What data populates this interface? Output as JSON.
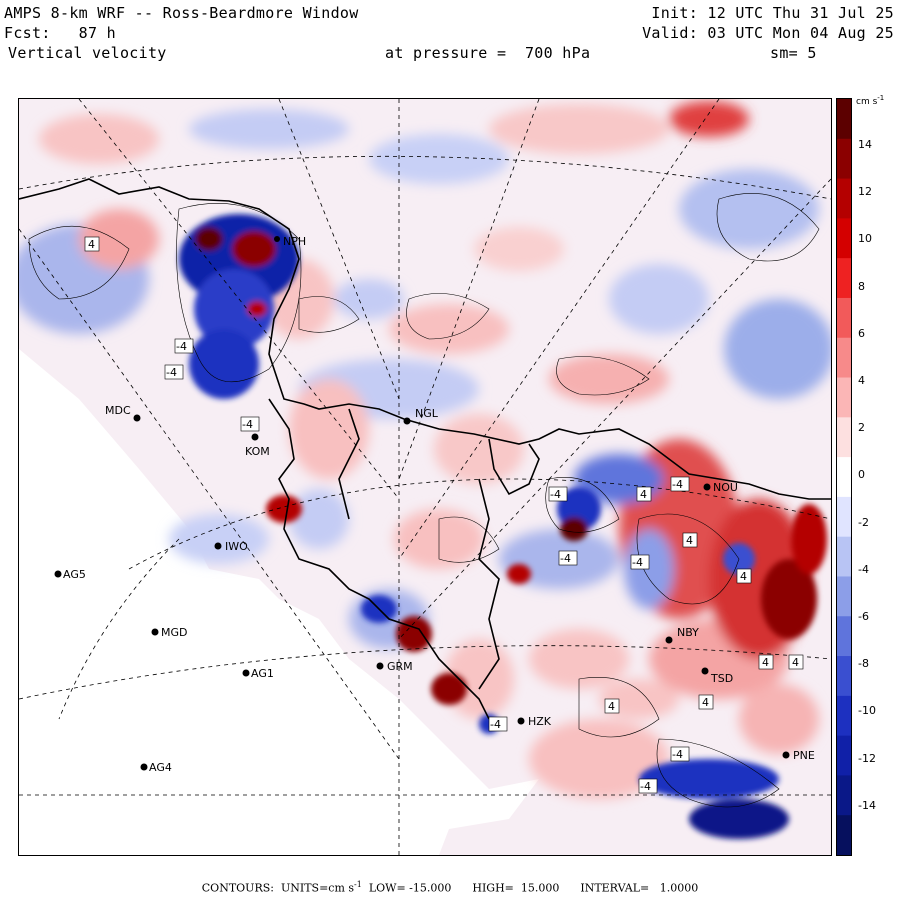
{
  "header": {
    "model": "AMPS 8-km WRF -- Ross-Beardmore Window",
    "forecast": "Fcst:   87 h",
    "field": "Vertical velocity",
    "init": "Init: 12 UTC Thu 31 Jul 25",
    "valid": "Valid: 03 UTC Mon 04 Aug 25",
    "pressure": "at pressure =  700 hPa",
    "smooth": "sm= 5"
  },
  "colorbar": {
    "units": "cm s",
    "units_exp": "-1",
    "ticks": [
      "14",
      "12",
      "10",
      "8",
      "6",
      "4",
      "2",
      "0",
      "-2",
      "-4",
      "-6",
      "-8",
      "-10",
      "-12",
      "-14"
    ],
    "colors": [
      "#5c0000",
      "#8b0000",
      "#b40000",
      "#d40000",
      "#ee2222",
      "#f25a5a",
      "#f78a8a",
      "#fbb6b6",
      "#fde0e0",
      "#ffffff",
      "#e0e4ff",
      "#b8c4f4",
      "#8c9ee8",
      "#5f74dc",
      "#3a4fd0",
      "#1d30c0",
      "#1020a8",
      "#0a1888",
      "#06105e"
    ]
  },
  "stations": [
    {
      "code": "MDC"
    },
    {
      "code": "NGL"
    },
    {
      "code": "NOU"
    },
    {
      "code": "IWO"
    },
    {
      "code": "AG5"
    },
    {
      "code": "MGD"
    },
    {
      "code": "AG1"
    },
    {
      "code": "GRM"
    },
    {
      "code": "NBY"
    },
    {
      "code": "PNE"
    },
    {
      "code": "AG4"
    },
    {
      "code": "TSD"
    },
    {
      "code": "HZK"
    },
    {
      "code": "NPH"
    },
    {
      "code": "KOM"
    }
  ],
  "contour_labels": [
    "4",
    "-4",
    "-4",
    "-4",
    "-4",
    "-4",
    "4",
    "4",
    "-4",
    "-4",
    "4",
    "4",
    "4",
    "-4",
    "4",
    "-4",
    "4",
    "-4"
  ],
  "footer": {
    "label": "CONTOURS:  UNITS=cm s",
    "exp": "-1",
    "rest": "  LOW= -15.000      HIGH=  15.000      INTERVAL=   1.0000"
  }
}
